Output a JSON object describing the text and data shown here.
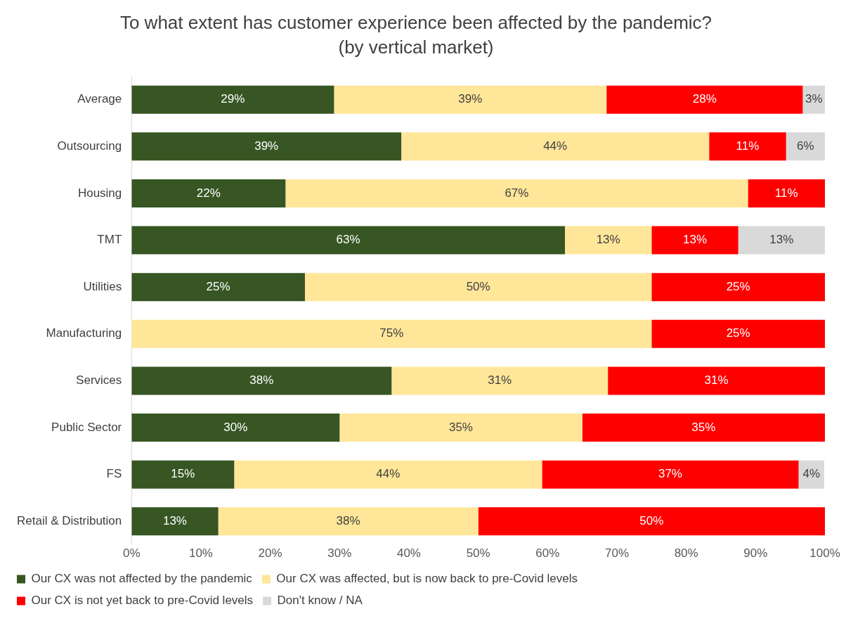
{
  "chart_data": {
    "type": "bar",
    "orientation": "horizontal",
    "stacked": true,
    "title": "To what extent has customer experience been affected by the pandemic?",
    "subtitle": "(by vertical market)",
    "categories": [
      "Average",
      "Outsourcing",
      "Housing",
      "TMT",
      "Utilities",
      "Manufacturing",
      "Services",
      "Public Sector",
      "FS",
      "Retail & Distribution"
    ],
    "series": [
      {
        "name": "Our CX was not affected by the pandemic",
        "color": "#375623",
        "values": [
          29.2,
          38.9,
          22.2,
          62.5,
          25,
          null,
          37.5,
          30,
          14.8,
          12.5
        ],
        "value_labels": [
          "29%",
          "39%",
          "22%",
          "63%",
          "25%",
          null,
          "38%",
          "30%",
          "15%",
          "13%"
        ]
      },
      {
        "name": "Our CX was affected, but is now back to pre-Covid levels",
        "color": "#ffe699",
        "values": [
          39.3,
          44.4,
          66.7,
          12.5,
          50,
          75,
          31.2,
          35,
          44.4,
          37.5
        ],
        "value_labels": [
          "39%",
          "44%",
          "67%",
          "13%",
          "50%",
          "75%",
          "31%",
          "35%",
          "44%",
          "38%"
        ]
      },
      {
        "name": "Our CX is not yet back to pre-Covid levels",
        "color": "#ff0000",
        "values": [
          28.3,
          11.1,
          11.1,
          12.5,
          25,
          25,
          31.3,
          35,
          37,
          50
        ],
        "value_labels": [
          "28%",
          "11%",
          "11%",
          "13%",
          "25%",
          "25%",
          "31%",
          "35%",
          "37%",
          "50%"
        ]
      },
      {
        "name": "Don't know / NA",
        "color": "#d9d9d9",
        "values": [
          3.2,
          5.6,
          null,
          12.5,
          null,
          null,
          null,
          null,
          3.7,
          null
        ],
        "value_labels": [
          "3%",
          "6%",
          null,
          "13%",
          null,
          null,
          null,
          null,
          "4%",
          null
        ]
      }
    ],
    "xlim": [
      0,
      100
    ],
    "xticks": [
      {
        "value": 0,
        "label": "0%"
      },
      {
        "value": 10,
        "label": "10%"
      },
      {
        "value": 20,
        "label": "20%"
      },
      {
        "value": 30,
        "label": "30%"
      },
      {
        "value": 40,
        "label": "40%"
      },
      {
        "value": 50,
        "label": "50%"
      },
      {
        "value": 60,
        "label": "60%"
      },
      {
        "value": 70,
        "label": "70%"
      },
      {
        "value": 80,
        "label": "80%"
      },
      {
        "value": 90,
        "label": "90%"
      },
      {
        "value": 100,
        "label": "100%"
      }
    ],
    "grid": false,
    "legend": "bottom"
  }
}
